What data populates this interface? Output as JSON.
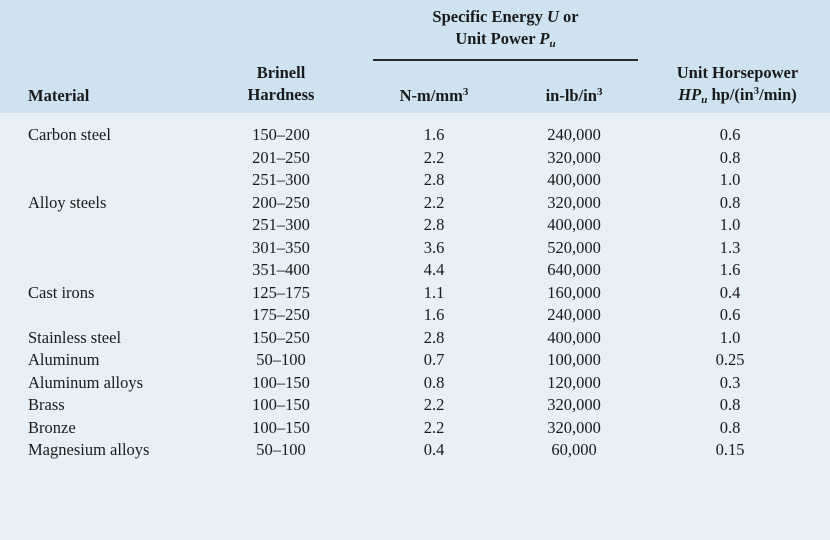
{
  "table": {
    "headers": {
      "material": "Material",
      "brinell_line1": "Brinell",
      "brinell_line2": "Hardness",
      "specific_line1_a": "Specific Energy ",
      "specific_line1_u": "U",
      "specific_line1_b": " or",
      "specific_line2_a": "Unit Power ",
      "specific_line2_p": "P",
      "specific_line2_sub": "u",
      "nm_unit": "N-m/mm",
      "nm_sup": "3",
      "in_unit": "in-lb/in",
      "in_sup": "3",
      "hp_line1": "Unit Horsepower",
      "hp_line2_hp": "HP",
      "hp_line2_sub": "u",
      "hp_line2_a": " hp/(in",
      "hp_line2_sup": "3",
      "hp_line2_b": "/min)"
    },
    "rows": [
      {
        "material": "Carbon steel",
        "hardness": "150–200",
        "nm": "1.6",
        "inlb": "240,000",
        "hp": "0.6"
      },
      {
        "material": "",
        "hardness": "201–250",
        "nm": "2.2",
        "inlb": "320,000",
        "hp": "0.8"
      },
      {
        "material": "",
        "hardness": "251–300",
        "nm": "2.8",
        "inlb": "400,000",
        "hp": "1.0"
      },
      {
        "material": "Alloy steels",
        "hardness": "200–250",
        "nm": "2.2",
        "inlb": "320,000",
        "hp": "0.8"
      },
      {
        "material": "",
        "hardness": "251–300",
        "nm": "2.8",
        "inlb": "400,000",
        "hp": "1.0"
      },
      {
        "material": "",
        "hardness": "301–350",
        "nm": "3.6",
        "inlb": "520,000",
        "hp": "1.3"
      },
      {
        "material": "",
        "hardness": "351–400",
        "nm": "4.4",
        "inlb": "640,000",
        "hp": "1.6"
      },
      {
        "material": "Cast irons",
        "hardness": "125–175",
        "nm": "1.1",
        "inlb": "160,000",
        "hp": "0.4"
      },
      {
        "material": "",
        "hardness": "175–250",
        "nm": "1.6",
        "inlb": "240,000",
        "hp": "0.6"
      },
      {
        "material": "Stainless steel",
        "hardness": "150–250",
        "nm": "2.8",
        "inlb": "400,000",
        "hp": "1.0"
      },
      {
        "material": "Aluminum",
        "hardness": "50–100",
        "nm": "0.7",
        "inlb": "100,000",
        "hp": "0.25"
      },
      {
        "material": "Aluminum alloys",
        "hardness": "100–150",
        "nm": "0.8",
        "inlb": "120,000",
        "hp": "0.3"
      },
      {
        "material": "Brass",
        "hardness": "100–150",
        "nm": "2.2",
        "inlb": "320,000",
        "hp": "0.8"
      },
      {
        "material": "Bronze",
        "hardness": "100–150",
        "nm": "2.2",
        "inlb": "320,000",
        "hp": "0.8"
      },
      {
        "material": "Magnesium alloys",
        "hardness": "50–100",
        "nm": "0.4",
        "inlb": "60,000",
        "hp": "0.15"
      }
    ]
  }
}
